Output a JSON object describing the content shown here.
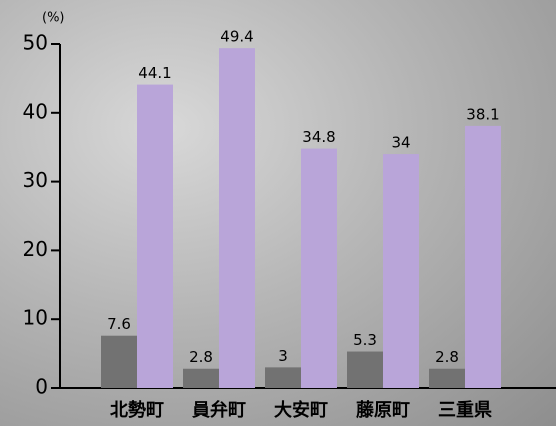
{
  "chart_data": {
    "type": "bar",
    "ylabel": "(%)",
    "categories": [
      "北勢町",
      "員弁町",
      "大安町",
      "藤原町",
      "三重県"
    ],
    "series": [
      {
        "color": "#727272",
        "values": [
          7.6,
          2.8,
          3,
          5.3,
          2.8
        ]
      },
      {
        "color": "#b9a5d9",
        "values": [
          44.1,
          49.4,
          34.8,
          34,
          38.1
        ]
      }
    ],
    "ylim": [
      0,
      50
    ],
    "yticks": [
      0,
      10,
      20,
      30,
      40,
      50
    ]
  }
}
